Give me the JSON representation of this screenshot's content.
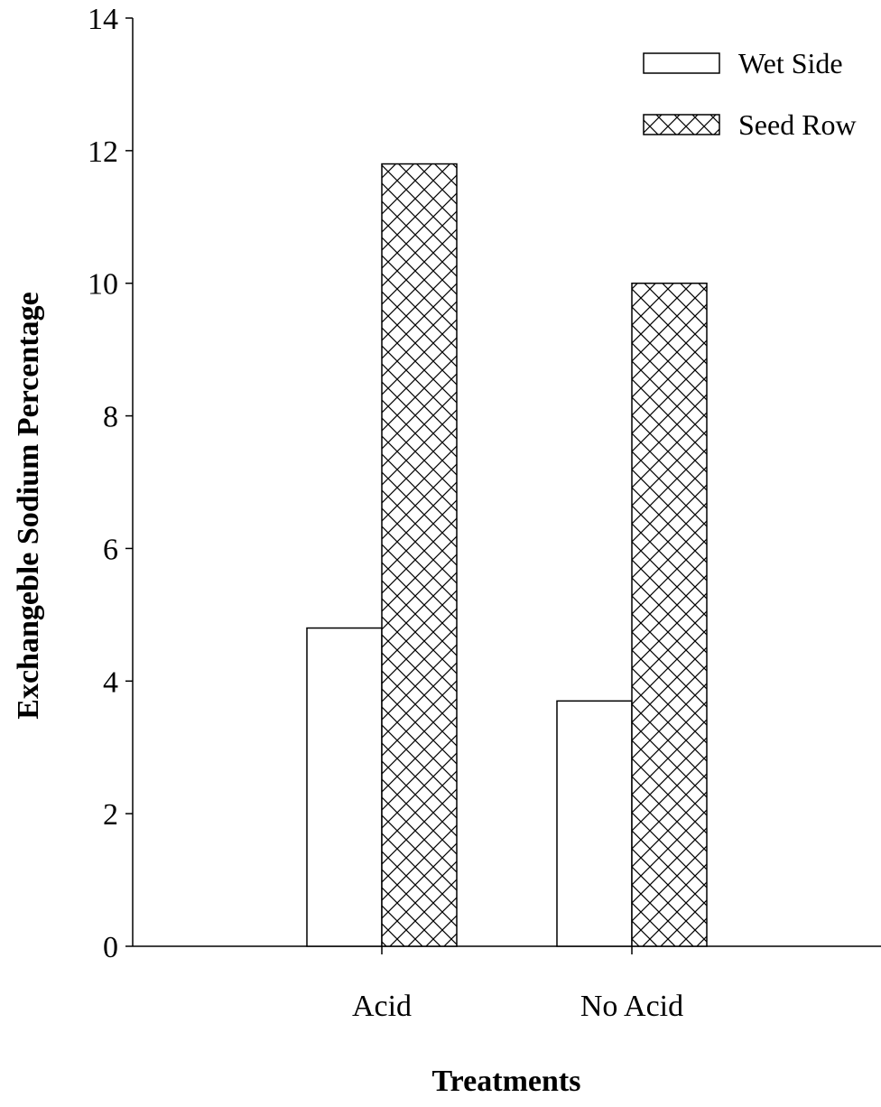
{
  "chart_data": {
    "type": "bar",
    "xlabel": "Treatments",
    "ylabel": "Exchangeble Sodium Percentage",
    "categories": [
      "Acid",
      "No Acid"
    ],
    "ylim": [
      0,
      14
    ],
    "yticks": [
      0,
      2,
      4,
      6,
      8,
      10,
      12,
      14
    ],
    "series": [
      {
        "name": "Wet Side",
        "values": [
          4.8,
          3.7
        ],
        "pattern": "none"
      },
      {
        "name": "Seed Row",
        "values": [
          11.8,
          10.0
        ],
        "pattern": "crosshatch"
      }
    ],
    "legend_position": "top-right",
    "grid": false
  },
  "colors": {
    "bar_fill": "#ffffff",
    "stroke": "#000000",
    "background": "#ffffff"
  }
}
